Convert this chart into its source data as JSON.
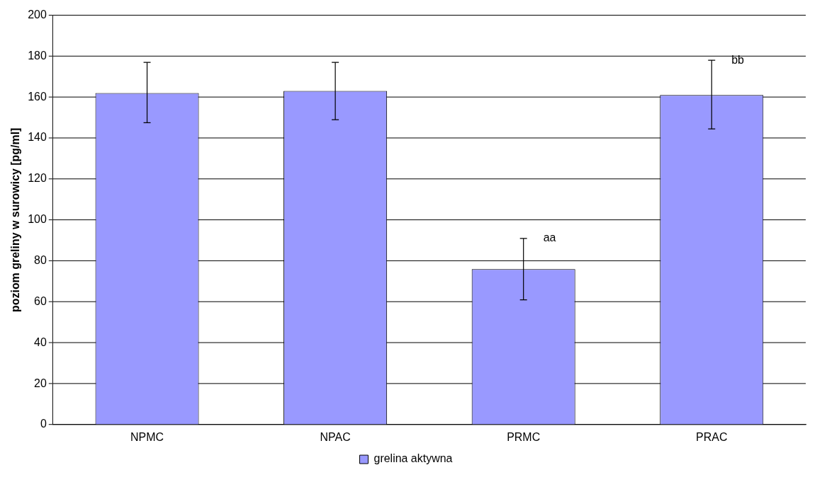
{
  "chart_data": {
    "type": "bar",
    "ylabel": "poziom greliny w surowicy [pg/ml]",
    "categories": [
      "NPMC",
      "NPAC",
      "PRMC",
      "PRAC"
    ],
    "series": [
      {
        "name": "grelina aktywna",
        "color": "#9999ff",
        "values": [
          162,
          163,
          76,
          161
        ],
        "errors": [
          [
            147.5,
            177
          ],
          [
            149,
            177
          ],
          [
            61,
            91
          ],
          [
            144.5,
            178
          ]
        ]
      }
    ],
    "ylim": [
      0,
      200
    ],
    "yticks": [
      0,
      20,
      40,
      60,
      80,
      100,
      120,
      140,
      160,
      180,
      200
    ],
    "grid": "y",
    "legend": "bottom",
    "annotations": [
      {
        "text": "aa",
        "x": "PRMC",
        "y": 91
      },
      {
        "text": "bb",
        "x": "PRAC",
        "y": 178
      }
    ]
  }
}
